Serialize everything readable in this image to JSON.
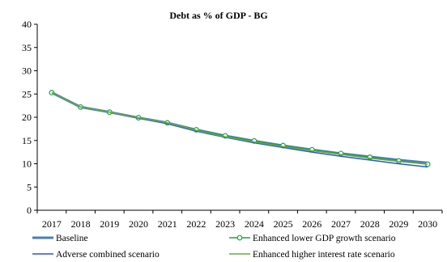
{
  "chart_data": {
    "type": "line",
    "title": "Debt as % of GDP - BG",
    "xlabel": "",
    "ylabel": "",
    "ylim": [
      0,
      40
    ],
    "yticks": [
      "0",
      "5",
      "10",
      "15",
      "20",
      "25",
      "30",
      "35",
      "40"
    ],
    "categories": [
      "2017",
      "2018",
      "2019",
      "2020",
      "2021",
      "2022",
      "2023",
      "2024",
      "2025",
      "2026",
      "2027",
      "2028",
      "2029",
      "2030"
    ],
    "grid": false,
    "legend_position": "bottom",
    "series": [
      {
        "name": "Baseline",
        "color": "#4a7ebb",
        "marker": "none",
        "values": [
          25.3,
          22.2,
          21.1,
          19.9,
          18.8,
          17.3,
          16.0,
          14.9,
          13.9,
          13.0,
          12.2,
          11.5,
          10.8,
          10.2
        ]
      },
      {
        "name": "Enhanced lower GDP growth scenario",
        "color": "#1fa04a",
        "marker": "circle",
        "values": [
          25.3,
          22.2,
          21.1,
          19.9,
          18.8,
          17.3,
          16.0,
          14.9,
          13.9,
          13.0,
          12.2,
          11.4,
          10.6,
          9.9
        ]
      },
      {
        "name": "Adverse combined scenario",
        "color": "#2f55c8",
        "marker": "none",
        "values": [
          25.3,
          22.2,
          21.1,
          19.8,
          18.6,
          17.0,
          15.7,
          14.5,
          13.5,
          12.5,
          11.6,
          10.8,
          10.0,
          9.3
        ]
      },
      {
        "name": "Enhanced higher interest rate scenario",
        "color": "#6aaa3c",
        "marker": "none",
        "values": [
          25.3,
          22.2,
          21.1,
          19.9,
          18.8,
          17.2,
          15.8,
          14.7,
          13.7,
          12.8,
          12.0,
          11.2,
          10.5,
          9.9
        ]
      }
    ]
  }
}
